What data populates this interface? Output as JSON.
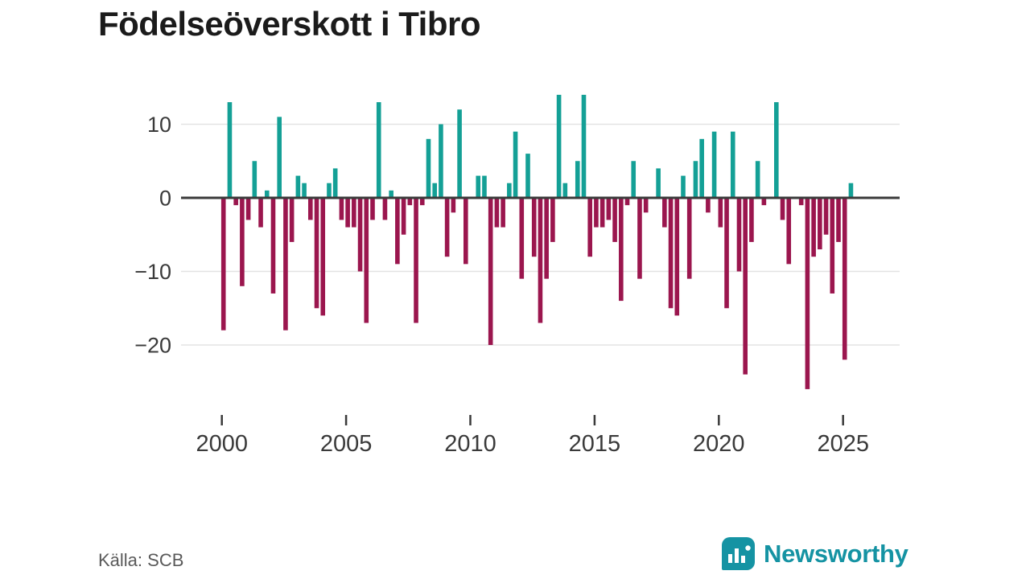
{
  "title": "Födelseöverskott i Tibro",
  "source": "Källa: SCB",
  "brand": {
    "name": "Newsworthy"
  },
  "chart_data": {
    "type": "bar",
    "title": "Födelseöverskott i Tibro",
    "xlabel": "",
    "ylabel": "",
    "frequency": "quarterly",
    "start_period": "2000 Q1",
    "end_period": "2025 Q3",
    "ylim": [
      -27,
      15
    ],
    "grid": "horizontal",
    "legend": "none",
    "y_ticks": [
      {
        "value": 10,
        "label": "10"
      },
      {
        "value": 0,
        "label": "0"
      },
      {
        "value": -10,
        "label": "−10"
      },
      {
        "value": -20,
        "label": "−20"
      }
    ],
    "x_ticks": [
      {
        "year": 2000,
        "label": "2000"
      },
      {
        "year": 2005,
        "label": "2005"
      },
      {
        "year": 2010,
        "label": "2010"
      },
      {
        "year": 2015,
        "label": "2015"
      },
      {
        "year": 2020,
        "label": "2020"
      },
      {
        "year": 2025,
        "label": "2025"
      }
    ],
    "values_by_year": {
      "2000": [
        0,
        -18,
        13,
        -1
      ],
      "2001": [
        -12,
        -3,
        5,
        -4
      ],
      "2002": [
        1,
        -13,
        11,
        -18
      ],
      "2003": [
        -6,
        3,
        2,
        -3
      ],
      "2004": [
        -15,
        -16,
        2,
        4
      ],
      "2005": [
        -3,
        -4,
        -4,
        -10
      ],
      "2006": [
        -17,
        -3,
        13,
        -3
      ],
      "2007": [
        1,
        -9,
        -5,
        -1
      ],
      "2008": [
        -17,
        -1,
        8,
        2
      ],
      "2009": [
        10,
        -8,
        -2,
        12
      ],
      "2010": [
        -9,
        0,
        3,
        3
      ],
      "2011": [
        -20,
        -4,
        -4,
        2
      ],
      "2012": [
        9,
        -11,
        6,
        -8
      ],
      "2013": [
        -17,
        -11,
        -6,
        14
      ],
      "2014": [
        2,
        0,
        5,
        14
      ],
      "2015": [
        -8,
        -4,
        -4,
        -3
      ],
      "2016": [
        -6,
        -14,
        -1,
        5
      ],
      "2017": [
        -11,
        -2,
        0,
        4
      ],
      "2018": [
        -4,
        -15,
        -16,
        3
      ],
      "2019": [
        -11,
        5,
        8,
        -2
      ],
      "2020": [
        9,
        -4,
        -15,
        9
      ],
      "2021": [
        -10,
        -24,
        -6,
        5
      ],
      "2022": [
        -1,
        0,
        13,
        -3
      ],
      "2023": [
        -9,
        0,
        -1,
        -26
      ],
      "2024": [
        -8,
        -7,
        -5,
        -13
      ],
      "2025": [
        -6,
        -22,
        2
      ]
    },
    "colors": {
      "positive": "#14A096",
      "negative": "#9B164E",
      "axis": "#3A3A3A",
      "gridline": "#E3E3E3"
    }
  }
}
